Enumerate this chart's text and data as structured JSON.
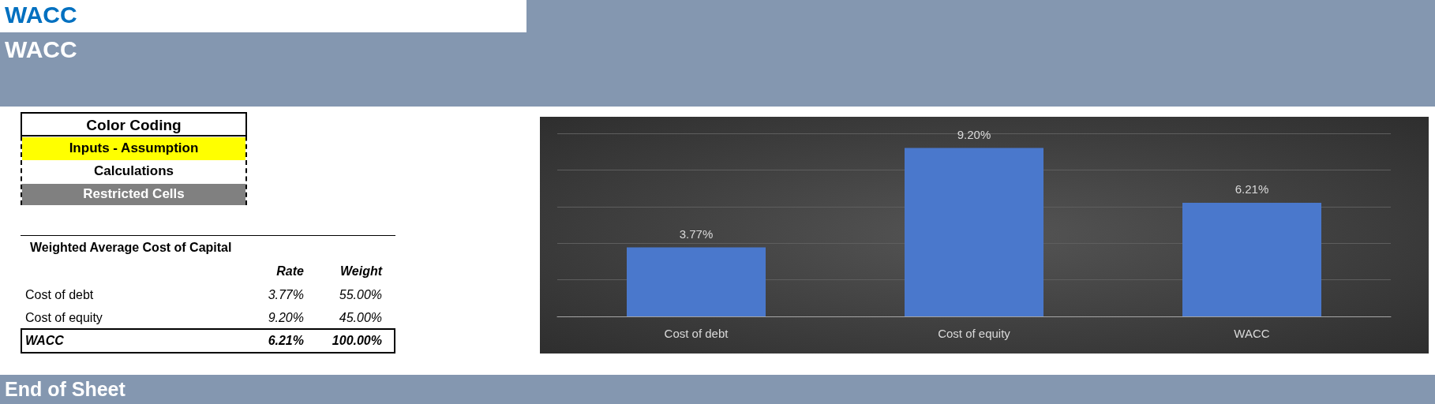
{
  "chart_data": {
    "type": "bar",
    "title": "WACC",
    "subtitle": "WACC",
    "categories": [
      "Cost of debt",
      "Cost of equity",
      "WACC"
    ],
    "values": [
      3.77,
      9.2,
      6.21
    ],
    "color": "#4a78cc",
    "value_labels": [
      "3.77%",
      "9.20%",
      "6.21%"
    ],
    "ylim": [
      0,
      10
    ],
    "yticks": [
      0,
      2,
      4,
      6,
      8,
      10
    ],
    "tick_labels": "x",
    "grid": "y",
    "annotations": [
      "Color Coding",
      "Inputs - Assumption",
      "Calculations",
      "Restricted Cells",
      "Weighted Average Cost of Capital",
      "Rate",
      "Weight",
      "Cost of debt",
      "3.77%",
      "55.00%",
      "Cost of equity",
      "9.20%",
      "45.00%",
      "WACC",
      "6.21%",
      "100.00%",
      "End of Sheet"
    ]
  }
}
